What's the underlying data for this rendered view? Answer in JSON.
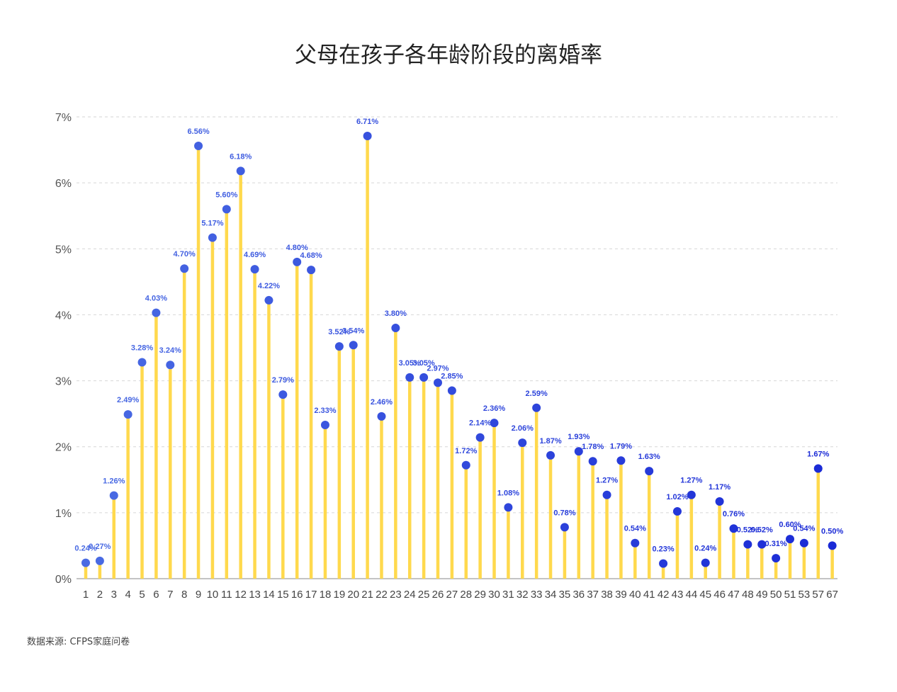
{
  "title": "父母在孩子各年龄阶段的离婚率",
  "source": "数据来源: CFPS家庭问卷",
  "colors": {
    "stem": "#FFD94D",
    "dot_light": "#4A6BE3",
    "dot_dark": "#1A2AD6",
    "grid": "#D6D6D6"
  },
  "chart_data": {
    "type": "lollipop",
    "title": "父母在孩子各年龄阶段的离婚率",
    "xlabel": "",
    "ylabel": "",
    "ylim": [
      0,
      7
    ],
    "yticks": [
      "0%",
      "1%",
      "2%",
      "3%",
      "4%",
      "5%",
      "6%",
      "7%"
    ],
    "grid": true,
    "categories": [
      "1",
      "2",
      "3",
      "4",
      "5",
      "6",
      "7",
      "8",
      "9",
      "10",
      "11",
      "12",
      "13",
      "14",
      "15",
      "16",
      "17",
      "18",
      "19",
      "20",
      "21",
      "22",
      "23",
      "24",
      "25",
      "26",
      "27",
      "28",
      "29",
      "30",
      "31",
      "32",
      "33",
      "34",
      "35",
      "36",
      "37",
      "38",
      "39",
      "40",
      "41",
      "42",
      "43",
      "44",
      "45",
      "46",
      "47",
      "48",
      "49",
      "50",
      "51",
      "53",
      "57",
      "67"
    ],
    "values": [
      0.24,
      0.27,
      1.26,
      2.49,
      3.28,
      4.03,
      3.24,
      4.7,
      6.56,
      5.17,
      5.6,
      6.18,
      4.69,
      4.22,
      2.79,
      4.8,
      4.68,
      2.33,
      3.52,
      3.54,
      6.71,
      2.46,
      3.8,
      3.05,
      3.05,
      2.97,
      2.85,
      1.72,
      2.14,
      2.36,
      1.08,
      2.06,
      2.59,
      1.87,
      0.78,
      1.93,
      1.78,
      1.27,
      1.79,
      0.54,
      1.63,
      0.23,
      1.02,
      1.27,
      0.24,
      1.17,
      0.76,
      0.52,
      0.52,
      0.31,
      0.6,
      0.54,
      1.67,
      0.5
    ],
    "labels": [
      "0.24%",
      "0.27%",
      "1.26%",
      "2.49%",
      "3.28%",
      "4.03%",
      "3.24%",
      "4.70%",
      "6.56%",
      "5.17%",
      "5.60%",
      "6.18%",
      "4.69%",
      "4.22%",
      "2.79%",
      "4.80%",
      "4.68%",
      "2.33%",
      "3.52%",
      "3.54%",
      "6.71%",
      "2.46%",
      "3.80%",
      "3.05%",
      "3.05%",
      "2.97%",
      "2.85%",
      "1.72%",
      "2.14%",
      "2.36%",
      "1.08%",
      "2.06%",
      "2.59%",
      "1.87%",
      "0.78%",
      "1.93%",
      "1.78%",
      "1.27%",
      "1.79%",
      "0.54%",
      "1.63%",
      "0.23%",
      "1.02%",
      "1.27%",
      "0.24%",
      "1.17%",
      "0.76%",
      "0.52%",
      "0.52%",
      "0.31%",
      "0.60%",
      "0.54%",
      "1.67%",
      "0.50%"
    ]
  }
}
